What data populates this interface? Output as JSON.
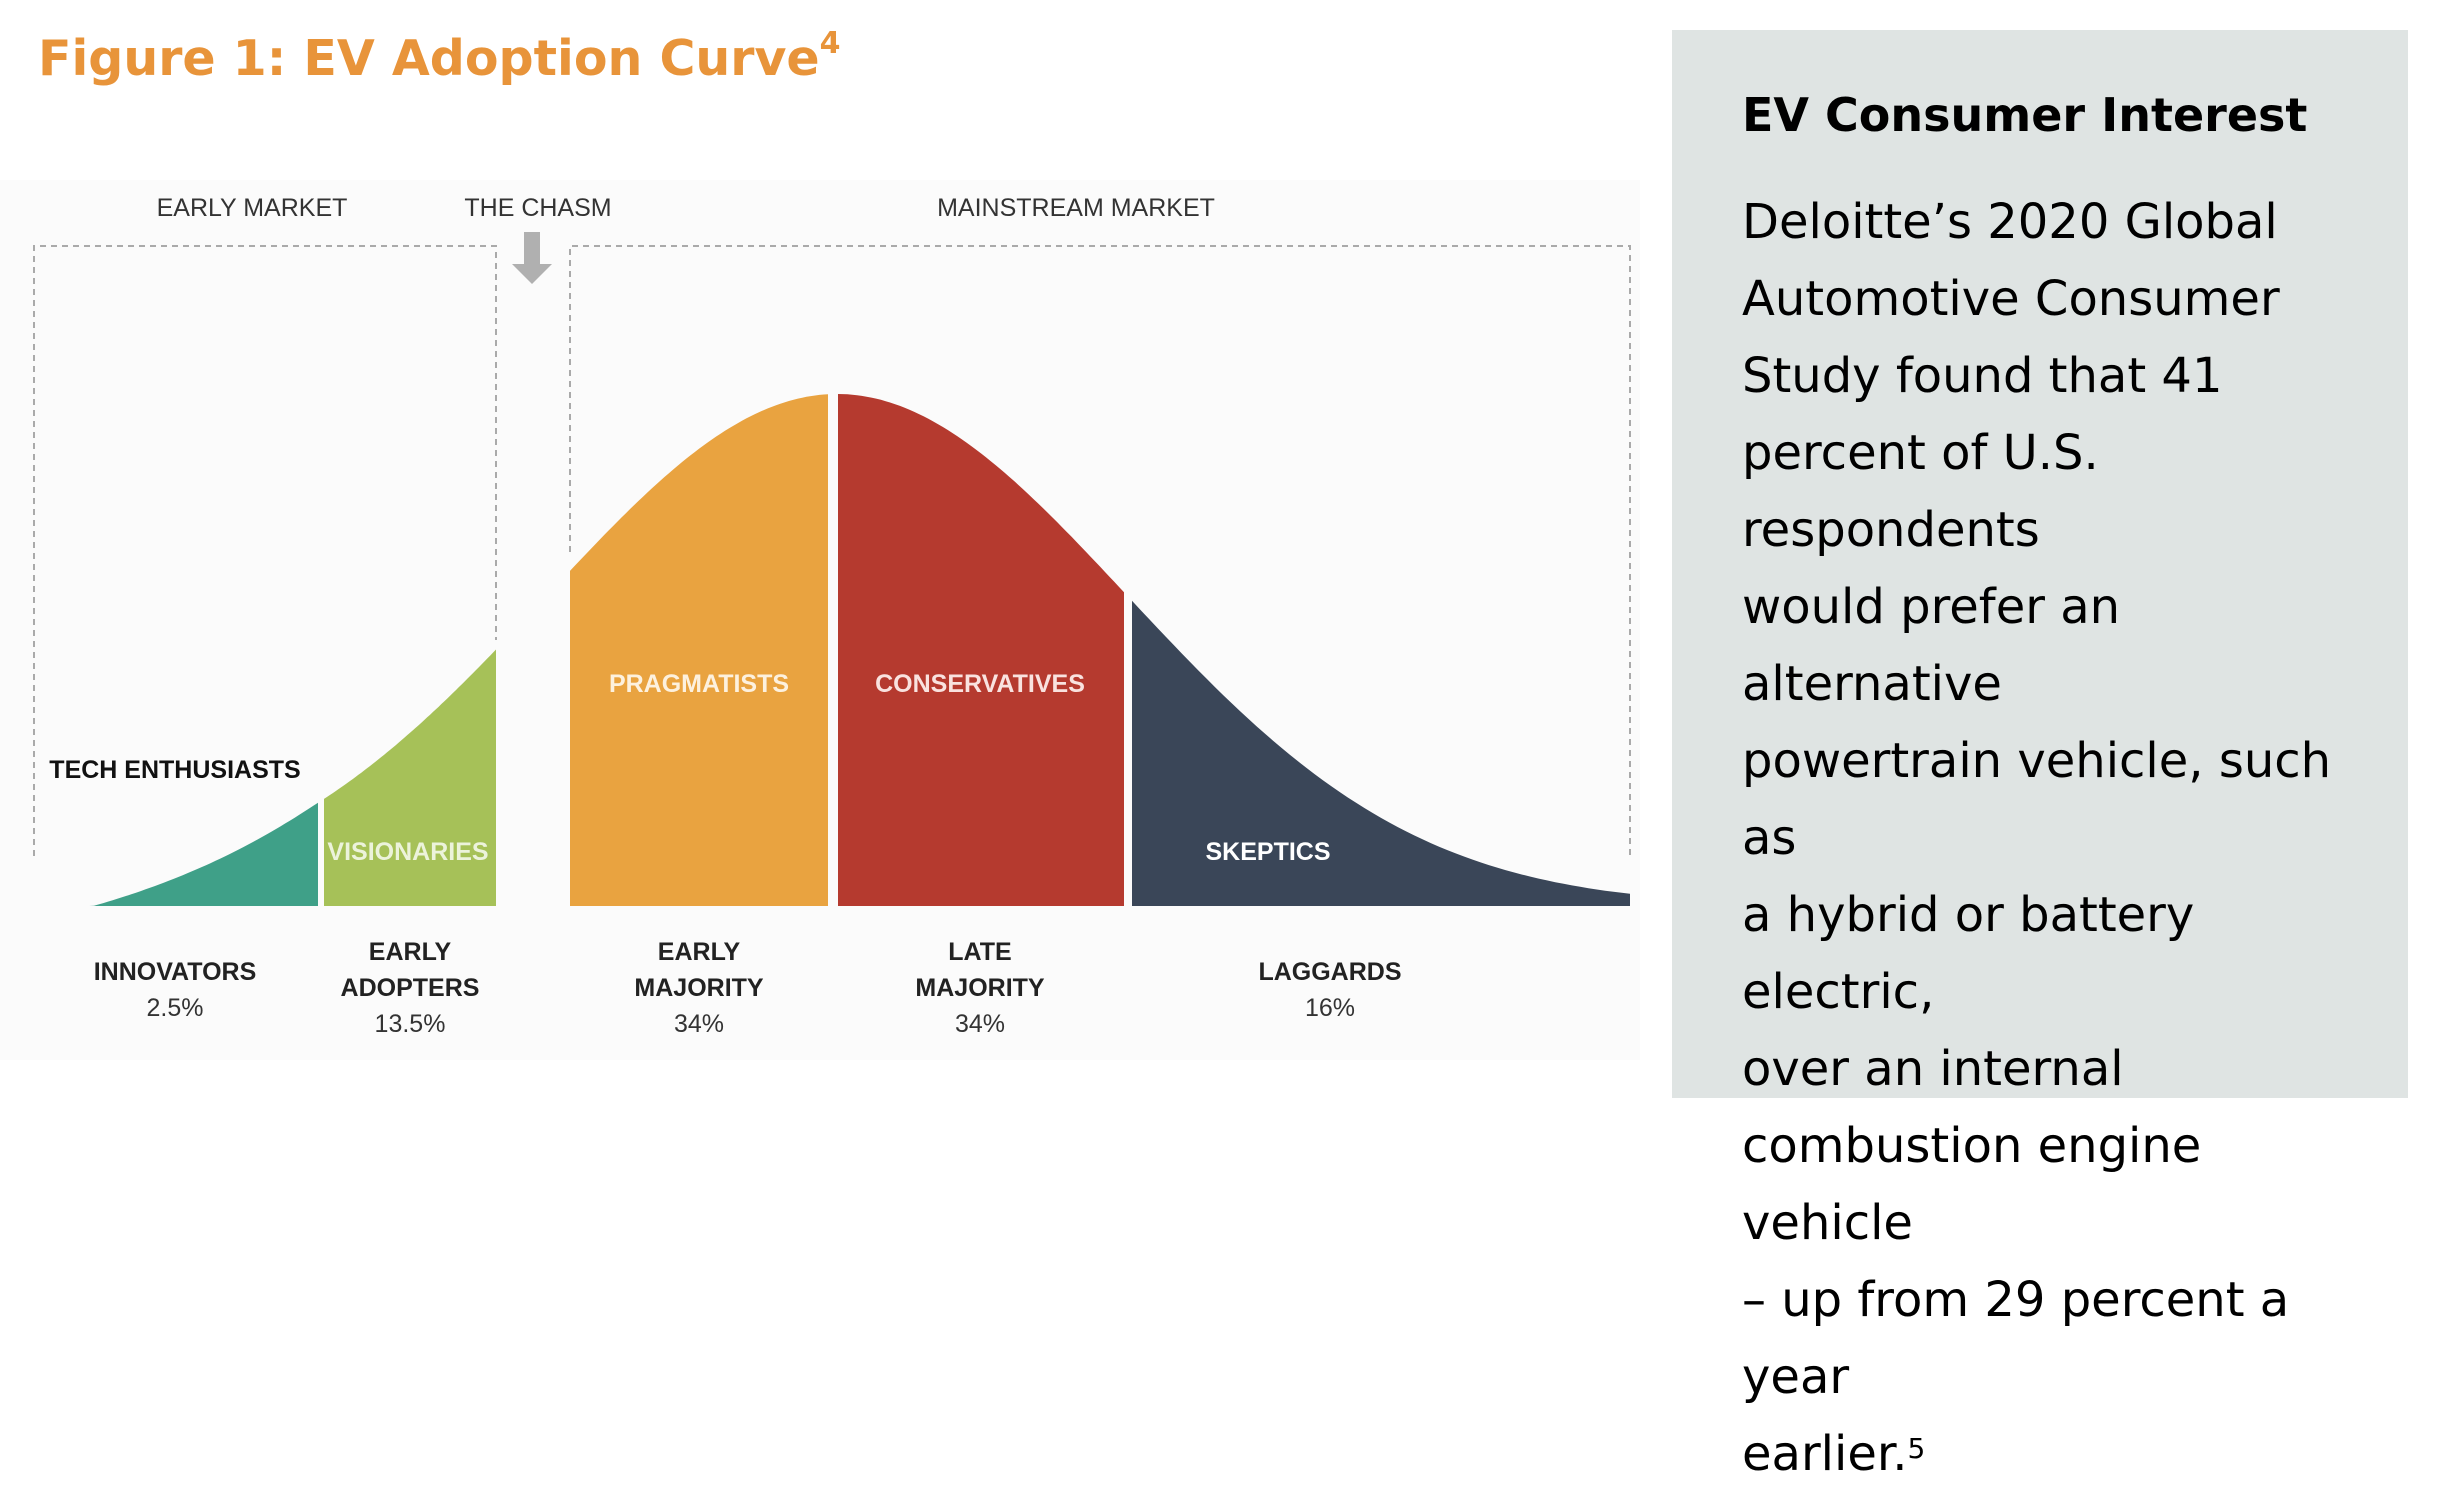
{
  "figure": {
    "title": "Figure 1: EV Adoption Curve",
    "title_footnote": "4"
  },
  "chart_data": {
    "type": "area",
    "section_labels": [
      "EARLY MARKET",
      "THE CHASM",
      "MAINSTREAM MARKET"
    ],
    "segments": [
      {
        "inner_label": "TECH ENTHUSIASTS",
        "category": "INNOVATORS",
        "value": 2.5,
        "value_label": "2.5%",
        "color": "#3FA088"
      },
      {
        "inner_label": "VISIONARIES",
        "category": "EARLY ADOPTERS",
        "value": 13.5,
        "value_label": "13.5%",
        "color": "#A6C158"
      },
      {
        "inner_label": "PRAGMATISTS",
        "category": "EARLY MAJORITY",
        "value": 34,
        "value_label": "34%",
        "color": "#E9A340"
      },
      {
        "inner_label": "CONSERVATIVES",
        "category": "LATE MAJORITY",
        "value": 34,
        "value_label": "34%",
        "color": "#B53A2F"
      },
      {
        "inner_label": "SKEPTICS",
        "category": "LAGGARDS",
        "value": 16,
        "value_label": "16%",
        "color": "#3A4658"
      }
    ]
  },
  "sidebar": {
    "heading": "EV Consumer Interest",
    "lines": [
      "Deloitte’s 2020 Global",
      "Automotive Consumer",
      "Study found that 41",
      "percent of U.S. respondents",
      "would prefer an alternative",
      "powertrain vehicle, such as",
      "a hybrid or battery electric,",
      "over an internal",
      "combustion engine vehicle",
      "– up from 29 percent a year",
      "earlier."
    ],
    "footnote": "5"
  }
}
